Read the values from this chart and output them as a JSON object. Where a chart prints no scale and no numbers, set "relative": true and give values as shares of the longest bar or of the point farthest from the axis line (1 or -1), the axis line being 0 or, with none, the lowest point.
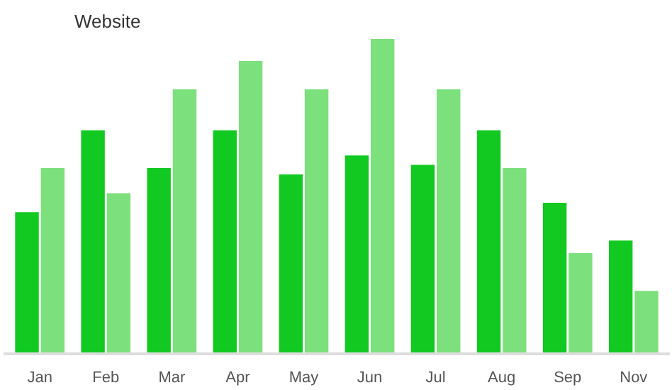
{
  "chart_data": {
    "type": "bar",
    "title": "Website",
    "relative": true,
    "categories": [
      "Jan",
      "Feb",
      "Mar",
      "Apr",
      "May",
      "Jun",
      "Jul",
      "Aug",
      "Sep",
      "Nov"
    ],
    "series": [
      {
        "color": "#11c920",
        "values": [
          0.45,
          0.71,
          0.59,
          0.71,
          0.57,
          0.63,
          0.6,
          0.71,
          0.48,
          0.36
        ]
      },
      {
        "color": "#7ce07c",
        "values": [
          0.59,
          0.51,
          0.84,
          0.93,
          0.84,
          1.0,
          0.84,
          0.59,
          0.32,
          0.2
        ]
      }
    ]
  }
}
